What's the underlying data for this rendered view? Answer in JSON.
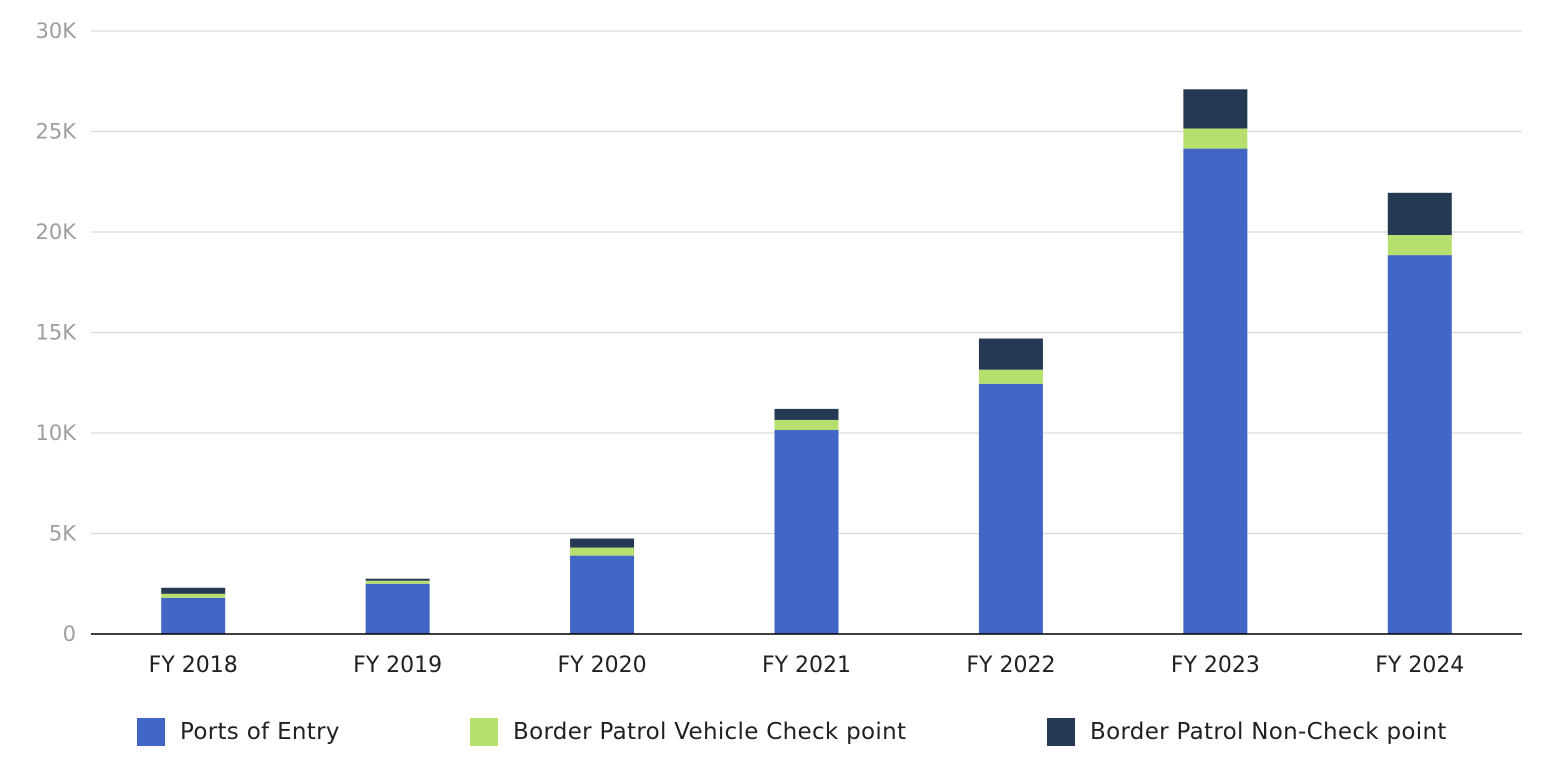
{
  "chart_data": {
    "type": "bar",
    "stacked": true,
    "categories": [
      "FY 2018",
      "FY 2019",
      "FY 2020",
      "FY 2021",
      "FY 2022",
      "FY 2023",
      "FY 2024"
    ],
    "series": [
      {
        "name": "Ports of Entry",
        "color": "#4166c5",
        "values": [
          1800,
          2500,
          3900,
          10150,
          12450,
          24150,
          18850
        ]
      },
      {
        "name": "Border Patrol Vehicle Check point",
        "color": "#b6df6e",
        "values": [
          200,
          150,
          400,
          500,
          700,
          1000,
          1000
        ]
      },
      {
        "name": "Border Patrol Non-Check point",
        "color": "#253a52",
        "values": [
          300,
          100,
          450,
          550,
          1550,
          1950,
          2100
        ]
      }
    ],
    "yticks": [
      {
        "value": 0,
        "label": "0"
      },
      {
        "value": 5000,
        "label": "5K"
      },
      {
        "value": 10000,
        "label": "10K"
      },
      {
        "value": 15000,
        "label": "15K"
      },
      {
        "value": 20000,
        "label": "20K"
      },
      {
        "value": 25000,
        "label": "25K"
      },
      {
        "value": 30000,
        "label": "30K"
      }
    ],
    "ylim": [
      0,
      30000
    ],
    "grid": true,
    "legend_position": "bottom"
  }
}
